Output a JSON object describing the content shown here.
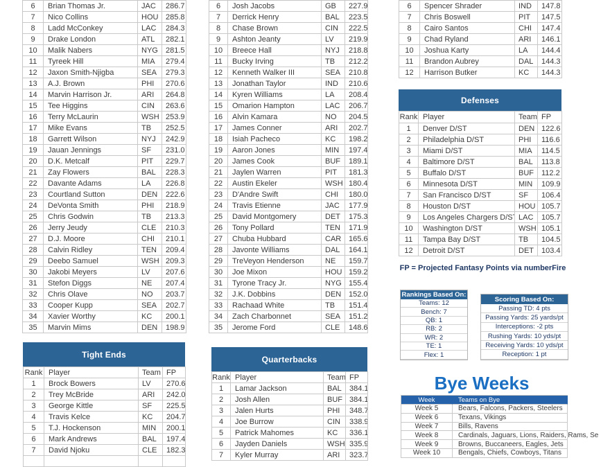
{
  "colors": {
    "section_header_bg": "#2d6496",
    "bye_header_bg": "#2562a9",
    "bye_title_text": "#1b6fc2",
    "legend_text": "#1f3864",
    "cell_text": "#3b3b3b"
  },
  "columns": {
    "rank": "Rank",
    "player": "Player",
    "team": "Team",
    "fp": "FP"
  },
  "tables": {
    "wide_receivers": {
      "rows": [
        [
          "6",
          "Brian Thomas Jr.",
          "JAC",
          "286.7"
        ],
        [
          "7",
          "Nico Collins",
          "HOU",
          "285.8"
        ],
        [
          "8",
          "Ladd McConkey",
          "LAC",
          "284.3"
        ],
        [
          "9",
          "Drake London",
          "ATL",
          "282.1"
        ],
        [
          "10",
          "Malik Nabers",
          "NYG",
          "281.5"
        ],
        [
          "11",
          "Tyreek Hill",
          "MIA",
          "279.4"
        ],
        [
          "12",
          "Jaxon Smith-Njigba",
          "SEA",
          "279.3"
        ],
        [
          "13",
          "A.J. Brown",
          "PHI",
          "270.6"
        ],
        [
          "14",
          "Marvin Harrison Jr.",
          "ARI",
          "264.8"
        ],
        [
          "15",
          "Tee Higgins",
          "CIN",
          "263.6"
        ],
        [
          "16",
          "Terry McLaurin",
          "WSH",
          "253.9"
        ],
        [
          "17",
          "Mike Evans",
          "TB",
          "252.5"
        ],
        [
          "18",
          "Garrett Wilson",
          "NYJ",
          "242.9"
        ],
        [
          "19",
          "Jauan Jennings",
          "SF",
          "231.0"
        ],
        [
          "20",
          "D.K. Metcalf",
          "PIT",
          "229.7"
        ],
        [
          "21",
          "Zay Flowers",
          "BAL",
          "228.3"
        ],
        [
          "22",
          "Davante Adams",
          "LA",
          "226.8"
        ],
        [
          "23",
          "Courtland Sutton",
          "DEN",
          "222.6"
        ],
        [
          "24",
          "DeVonta Smith",
          "PHI",
          "218.9"
        ],
        [
          "25",
          "Chris Godwin",
          "TB",
          "213.3"
        ],
        [
          "26",
          "Jerry Jeudy",
          "CLE",
          "210.3"
        ],
        [
          "27",
          "D.J. Moore",
          "CHI",
          "210.1"
        ],
        [
          "28",
          "Calvin Ridley",
          "TEN",
          "209.4"
        ],
        [
          "29",
          "Deebo Samuel",
          "WSH",
          "209.3"
        ],
        [
          "30",
          "Jakobi Meyers",
          "LV",
          "207.6"
        ],
        [
          "31",
          "Stefon Diggs",
          "NE",
          "207.4"
        ],
        [
          "32",
          "Chris Olave",
          "NO",
          "203.7"
        ],
        [
          "33",
          "Cooper Kupp",
          "SEA",
          "202.7"
        ],
        [
          "34",
          "Xavier Worthy",
          "KC",
          "200.1"
        ],
        [
          "35",
          "Marvin Mims",
          "DEN",
          "198.9"
        ]
      ]
    },
    "running_backs": {
      "rows": [
        [
          "6",
          "Josh Jacobs",
          "GB",
          "227.9"
        ],
        [
          "7",
          "Derrick Henry",
          "BAL",
          "223.5"
        ],
        [
          "8",
          "Chase Brown",
          "CIN",
          "222.5"
        ],
        [
          "9",
          "Ashton Jeanty",
          "LV",
          "219.9"
        ],
        [
          "10",
          "Breece Hall",
          "NYJ",
          "218.8"
        ],
        [
          "11",
          "Bucky Irving",
          "TB",
          "212.2"
        ],
        [
          "12",
          "Kenneth Walker III",
          "SEA",
          "210.8"
        ],
        [
          "13",
          "Jonathan Taylor",
          "IND",
          "210.6"
        ],
        [
          "14",
          "Kyren Williams",
          "LA",
          "208.4"
        ],
        [
          "15",
          "Omarion Hampton",
          "LAC",
          "206.7"
        ],
        [
          "16",
          "Alvin Kamara",
          "NO",
          "204.5"
        ],
        [
          "17",
          "James Conner",
          "ARI",
          "202.7"
        ],
        [
          "18",
          "Isiah Pacheco",
          "KC",
          "198.2"
        ],
        [
          "19",
          "Aaron Jones",
          "MIN",
          "197.4"
        ],
        [
          "20",
          "James Cook",
          "BUF",
          "189.1"
        ],
        [
          "21",
          "Jaylen Warren",
          "PIT",
          "181.3"
        ],
        [
          "22",
          "Austin Ekeler",
          "WSH",
          "180.4"
        ],
        [
          "23",
          "D'Andre Swift",
          "CHI",
          "180.0"
        ],
        [
          "24",
          "Travis Etienne",
          "JAC",
          "177.9"
        ],
        [
          "25",
          "David Montgomery",
          "DET",
          "175.3"
        ],
        [
          "26",
          "Tony Pollard",
          "TEN",
          "171.9"
        ],
        [
          "27",
          "Chuba Hubbard",
          "CAR",
          "165.6"
        ],
        [
          "28",
          "Javonte Williams",
          "DAL",
          "164.1"
        ],
        [
          "29",
          "TreVeyon Henderson",
          "NE",
          "159.7"
        ],
        [
          "30",
          "Joe Mixon",
          "HOU",
          "159.2"
        ],
        [
          "31",
          "Tyrone Tracy Jr.",
          "NYG",
          "155.4"
        ],
        [
          "32",
          "J.K. Dobbins",
          "DEN",
          "152.0"
        ],
        [
          "33",
          "Rachaad White",
          "TB",
          "151.4"
        ],
        [
          "34",
          "Zach Charbonnet",
          "SEA",
          "151.2"
        ],
        [
          "35",
          "Jerome Ford",
          "CLE",
          "148.6"
        ]
      ]
    },
    "kickers": {
      "rows": [
        [
          "6",
          "Spencer Shrader",
          "IND",
          "147.8"
        ],
        [
          "7",
          "Chris Boswell",
          "PIT",
          "147.5"
        ],
        [
          "8",
          "Cairo Santos",
          "CHI",
          "147.4"
        ],
        [
          "9",
          "Chad Ryland",
          "ARI",
          "146.1"
        ],
        [
          "10",
          "Joshua Karty",
          "LA",
          "144.4"
        ],
        [
          "11",
          "Brandon Aubrey",
          "DAL",
          "144.3"
        ],
        [
          "12",
          "Harrison Butker",
          "KC",
          "144.3"
        ]
      ]
    },
    "defenses": {
      "title": "Defenses",
      "rows": [
        [
          "1",
          "Denver D/ST",
          "DEN",
          "122.6"
        ],
        [
          "2",
          "Philadelphia D/ST",
          "PHI",
          "116.6"
        ],
        [
          "3",
          "Miami D/ST",
          "MIA",
          "114.5"
        ],
        [
          "4",
          "Baltimore D/ST",
          "BAL",
          "113.8"
        ],
        [
          "5",
          "Buffalo D/ST",
          "BUF",
          "112.2"
        ],
        [
          "6",
          "Minnesota D/ST",
          "MIN",
          "109.9"
        ],
        [
          "7",
          "San Francisco D/ST",
          "SF",
          "106.4"
        ],
        [
          "8",
          "Houston D/ST",
          "HOU",
          "105.7"
        ],
        [
          "9",
          "Los Angeles Chargers D/ST",
          "LAC",
          "105.7"
        ],
        [
          "10",
          "Washington D/ST",
          "WSH",
          "105.1"
        ],
        [
          "11",
          "Tampa Bay D/ST",
          "TB",
          "104.5"
        ],
        [
          "12",
          "Detroit D/ST",
          "DET",
          "103.4"
        ]
      ]
    },
    "tight_ends": {
      "title": "Tight Ends",
      "rows": [
        [
          "1",
          "Brock Bowers",
          "LV",
          "270.6"
        ],
        [
          "2",
          "Trey McBride",
          "ARI",
          "242.0"
        ],
        [
          "3",
          "George Kittle",
          "SF",
          "225.5"
        ],
        [
          "4",
          "Travis Kelce",
          "KC",
          "204.7"
        ],
        [
          "5",
          "T.J. Hockenson",
          "MIN",
          "200.1"
        ],
        [
          "6",
          "Mark Andrews",
          "BAL",
          "197.4"
        ],
        [
          "7",
          "David Njoku",
          "CLE",
          "182.3"
        ]
      ]
    },
    "quarterbacks": {
      "title": "Quarterbacks",
      "rows": [
        [
          "1",
          "Lamar Jackson",
          "BAL",
          "384.1"
        ],
        [
          "2",
          "Josh Allen",
          "BUF",
          "384.1"
        ],
        [
          "3",
          "Jalen Hurts",
          "PHI",
          "348.7"
        ],
        [
          "4",
          "Joe Burrow",
          "CIN",
          "338.9"
        ],
        [
          "5",
          "Patrick Mahomes",
          "KC",
          "336.1"
        ],
        [
          "6",
          "Jayden Daniels",
          "WSH",
          "335.9"
        ],
        [
          "7",
          "Kyler Murray",
          "ARI",
          "323.7"
        ]
      ]
    }
  },
  "fp_note": "FP = Projected Fantasy Points via numberFire",
  "rankings_box": {
    "title": "Rankings Based On:",
    "items": [
      "Teams: 12",
      "Bench: 7",
      "QB: 1",
      "RB: 2",
      "WR: 2",
      "TE: 1",
      "Flex: 1"
    ]
  },
  "scoring_box": {
    "title": "Scoring Based On:",
    "items": [
      "Passing TD: 4 pts",
      "Passing Yards: 25 yards/pt",
      "Interceptions: -2 pts",
      "Rushing Yards: 10 yds/pt",
      "Receiving Yards: 10 yds/pt",
      "Reception: 1 pt"
    ]
  },
  "bye_weeks": {
    "title": "Bye Weeks",
    "header": {
      "week": "Week",
      "teams": "Teams on Bye"
    },
    "rows": [
      [
        "Week 5",
        "Bears, Falcons, Packers, Steelers"
      ],
      [
        "Week 6",
        "Texans, Vikings"
      ],
      [
        "Week 7",
        "Bills, Ravens"
      ],
      [
        "Week 8",
        "Cardinals, Jaguars, Lions, Raiders, Rams, Se"
      ],
      [
        "Week 9",
        "Browns, Buccaneers, Eagles, Jets"
      ],
      [
        "Week 10",
        "Bengals, Chiefs, Cowboys, Titans"
      ]
    ]
  }
}
